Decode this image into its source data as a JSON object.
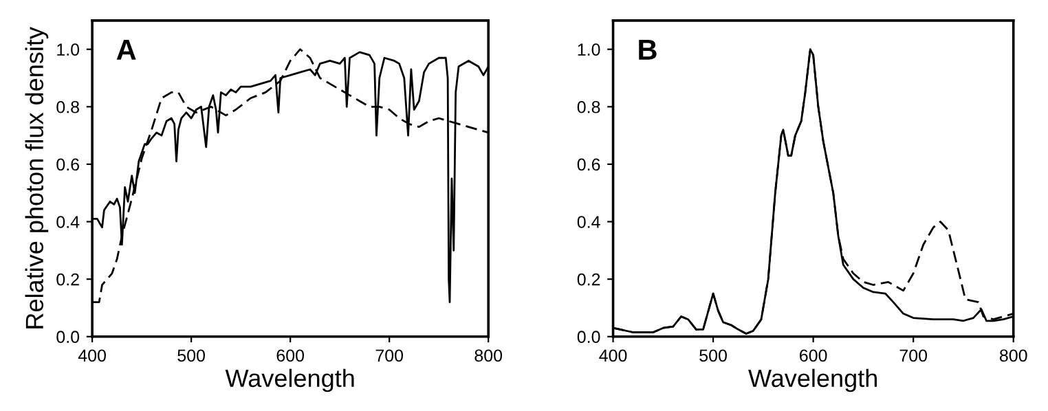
{
  "chart_data": [
    {
      "type": "line",
      "title": "A",
      "xlabel": "Wavelength",
      "ylabel": "Relative photon flux density",
      "xlim": [
        400,
        800
      ],
      "ylim": [
        0,
        1.1
      ],
      "xticks": [
        400,
        500,
        600,
        700,
        800
      ],
      "yticks": [
        {
          "value": 0,
          "label": "0.0"
        },
        {
          "value": 0.2,
          "label": "0.2"
        },
        {
          "value": 0.4,
          "label": "0.4"
        },
        {
          "value": 0.6,
          "label": "0.6"
        },
        {
          "value": 0.8,
          "label": "0.8"
        },
        {
          "value": 1.0,
          "label": "1.0"
        }
      ],
      "grid": false,
      "series": [
        {
          "color": "#000000",
          "line_style": "solid",
          "x": [
            400,
            405,
            410,
            412,
            418,
            422,
            425,
            428,
            430,
            433,
            436,
            440,
            443,
            447,
            450,
            453,
            456,
            460,
            465,
            470,
            475,
            480,
            483,
            485,
            487,
            490,
            495,
            500,
            505,
            510,
            515,
            518,
            522,
            525,
            527,
            530,
            535,
            540,
            545,
            550,
            560,
            570,
            580,
            585,
            588,
            590,
            600,
            610,
            620,
            625,
            630,
            640,
            650,
            655,
            657,
            660,
            670,
            680,
            685,
            687,
            690,
            695,
            705,
            710,
            715,
            719,
            722,
            725,
            730,
            735,
            740,
            750,
            757,
            759,
            760,
            761,
            763,
            765,
            767,
            770,
            780,
            790,
            795,
            800
          ],
          "values": [
            0.41,
            0.41,
            0.38,
            0.44,
            0.47,
            0.46,
            0.48,
            0.45,
            0.32,
            0.52,
            0.47,
            0.56,
            0.5,
            0.61,
            0.64,
            0.67,
            0.67,
            0.69,
            0.71,
            0.7,
            0.75,
            0.76,
            0.74,
            0.61,
            0.72,
            0.76,
            0.78,
            0.76,
            0.79,
            0.8,
            0.66,
            0.8,
            0.84,
            0.79,
            0.71,
            0.85,
            0.84,
            0.86,
            0.85,
            0.87,
            0.87,
            0.88,
            0.89,
            0.91,
            0.78,
            0.9,
            0.91,
            0.92,
            0.93,
            0.91,
            0.95,
            0.96,
            0.95,
            0.97,
            0.8,
            0.97,
            0.99,
            0.98,
            0.95,
            0.7,
            0.9,
            0.97,
            0.96,
            0.95,
            0.9,
            0.7,
            0.93,
            0.79,
            0.82,
            0.92,
            0.95,
            0.97,
            0.97,
            0.9,
            0.2,
            0.12,
            0.55,
            0.3,
            0.85,
            0.94,
            0.96,
            0.94,
            0.91,
            0.94
          ]
        },
        {
          "color": "#000000",
          "line_style": "dashed",
          "x": [
            400,
            407,
            410,
            415,
            420,
            425,
            430,
            440,
            450,
            460,
            470,
            480,
            487,
            495,
            505,
            520,
            535,
            545,
            560,
            575,
            590,
            600,
            610,
            620,
            630,
            640,
            650,
            660,
            670,
            680,
            690,
            700,
            710,
            720,
            730,
            740,
            750,
            760,
            770,
            780,
            790,
            800
          ],
          "values": [
            0.12,
            0.12,
            0.18,
            0.2,
            0.22,
            0.27,
            0.35,
            0.48,
            0.62,
            0.72,
            0.83,
            0.85,
            0.85,
            0.8,
            0.78,
            0.8,
            0.77,
            0.79,
            0.83,
            0.85,
            0.89,
            0.96,
            1.0,
            0.97,
            0.9,
            0.88,
            0.86,
            0.84,
            0.82,
            0.8,
            0.8,
            0.79,
            0.76,
            0.74,
            0.73,
            0.75,
            0.76,
            0.75,
            0.74,
            0.73,
            0.72,
            0.71
          ]
        }
      ]
    },
    {
      "type": "line",
      "title": "B",
      "xlabel": "Wavelength",
      "xlim": [
        400,
        800
      ],
      "ylim": [
        0,
        1.1
      ],
      "xticks": [
        400,
        500,
        600,
        700,
        800
      ],
      "yticks": [
        {
          "value": 0,
          "label": "0.0"
        },
        {
          "value": 0.2,
          "label": "0.2"
        },
        {
          "value": 0.4,
          "label": "0.4"
        },
        {
          "value": 0.6,
          "label": "0.6"
        },
        {
          "value": 0.8,
          "label": "0.8"
        },
        {
          "value": 1.0,
          "label": "1.0"
        }
      ],
      "grid": false,
      "series": [
        {
          "color": "#000000",
          "line_style": "solid",
          "x": [
            400,
            420,
            440,
            450,
            460,
            468,
            475,
            483,
            490,
            500,
            505,
            510,
            518,
            525,
            533,
            540,
            548,
            555,
            562,
            568,
            570,
            575,
            578,
            582,
            588,
            592,
            597,
            600,
            605,
            610,
            620,
            625,
            630,
            640,
            650,
            660,
            672,
            680,
            690,
            700,
            720,
            740,
            750,
            760,
            768,
            773,
            780,
            790,
            800
          ],
          "values": [
            0.03,
            0.015,
            0.015,
            0.03,
            0.035,
            0.07,
            0.06,
            0.025,
            0.025,
            0.15,
            0.09,
            0.05,
            0.04,
            0.025,
            0.01,
            0.02,
            0.06,
            0.2,
            0.5,
            0.7,
            0.72,
            0.63,
            0.63,
            0.7,
            0.75,
            0.85,
            1.0,
            0.98,
            0.8,
            0.68,
            0.5,
            0.35,
            0.25,
            0.2,
            0.17,
            0.155,
            0.15,
            0.12,
            0.08,
            0.065,
            0.06,
            0.06,
            0.055,
            0.065,
            0.095,
            0.055,
            0.055,
            0.06,
            0.07
          ]
        },
        {
          "color": "#000000",
          "line_style": "dashed",
          "x": [
            400,
            420,
            440,
            450,
            460,
            468,
            475,
            483,
            490,
            500,
            505,
            510,
            518,
            525,
            533,
            540,
            548,
            555,
            562,
            568,
            570,
            575,
            578,
            582,
            588,
            592,
            597,
            600,
            605,
            610,
            620,
            625,
            630,
            640,
            650,
            660,
            675,
            690,
            700,
            710,
            720,
            727,
            735,
            745,
            752,
            765,
            770,
            780,
            790,
            800
          ],
          "values": [
            0.03,
            0.015,
            0.015,
            0.03,
            0.035,
            0.07,
            0.06,
            0.025,
            0.025,
            0.15,
            0.09,
            0.05,
            0.04,
            0.025,
            0.01,
            0.02,
            0.06,
            0.2,
            0.5,
            0.7,
            0.72,
            0.63,
            0.63,
            0.7,
            0.75,
            0.85,
            1.0,
            0.98,
            0.8,
            0.68,
            0.5,
            0.35,
            0.27,
            0.22,
            0.19,
            0.18,
            0.19,
            0.16,
            0.22,
            0.32,
            0.38,
            0.4,
            0.37,
            0.23,
            0.13,
            0.12,
            0.07,
            0.06,
            0.07,
            0.08
          ]
        }
      ]
    }
  ]
}
